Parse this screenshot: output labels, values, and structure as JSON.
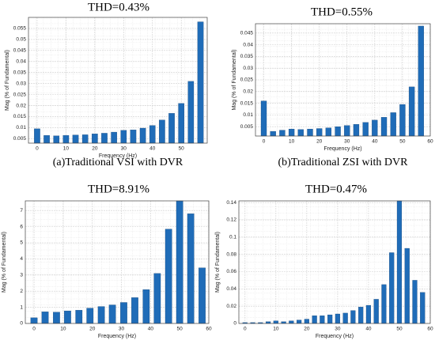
{
  "chart_data": [
    {
      "type": "bar",
      "title": "THD=0.43%",
      "caption": "(a)Traditional VSI with DVR",
      "x_label": "Frequency (Hz)",
      "y_label": "Mag (% of Fundamental)",
      "color": "#1f6cb8",
      "grid": true,
      "x": [
        0,
        3.33,
        6.67,
        10,
        13.33,
        16.67,
        20,
        23.33,
        26.67,
        30,
        33.33,
        36.67,
        40,
        43.33,
        46.67,
        50,
        53.33,
        56.67
      ],
      "values": [
        0.0095,
        0.0065,
        0.0063,
        0.0065,
        0.0067,
        0.0068,
        0.0072,
        0.0075,
        0.008,
        0.0088,
        0.009,
        0.0098,
        0.011,
        0.0135,
        0.0165,
        0.021,
        0.031,
        0.058
      ],
      "xlim": [
        -3,
        59
      ],
      "xticks": [
        0,
        10,
        20,
        30,
        40,
        50
      ],
      "ylim": [
        0.003,
        0.06
      ],
      "yticks": [
        0.005,
        0.01,
        0.015,
        0.02,
        0.025,
        0.03,
        0.035,
        0.04,
        0.045,
        0.05,
        0.055
      ]
    },
    {
      "type": "bar",
      "title": "THD=0.55%",
      "caption": "(b)Traditional ZSI with DVR",
      "x_label": "Frequency (Hz)",
      "y_label": "Mag (% of Fundamental)",
      "color": "#1f6cb8",
      "grid": true,
      "x": [
        0,
        3.33,
        6.67,
        10,
        13.33,
        16.67,
        20,
        23.33,
        26.67,
        30,
        33.33,
        36.67,
        40,
        43.33,
        46.67,
        50,
        53.33,
        56.67
      ],
      "values": [
        0.016,
        0.003,
        0.0035,
        0.004,
        0.0038,
        0.004,
        0.0042,
        0.0045,
        0.005,
        0.0055,
        0.006,
        0.0068,
        0.0078,
        0.009,
        0.011,
        0.0145,
        0.022,
        0.048
      ],
      "xlim": [
        -3,
        60
      ],
      "xticks": [
        0,
        10,
        20,
        30,
        40,
        50,
        60
      ],
      "ylim": [
        0.001,
        0.049
      ],
      "yticks": [
        0.005,
        0.01,
        0.015,
        0.02,
        0.025,
        0.03,
        0.035,
        0.04,
        0.045
      ]
    },
    {
      "type": "bar",
      "title": "THD=8.91%",
      "x_label": "Frequency (Hz)",
      "y_label": "Mag (% of Fundamental)",
      "color": "#1f6cb8",
      "grid": true,
      "x": [
        0,
        3.8,
        7.7,
        11.5,
        15.4,
        19.2,
        23.1,
        26.9,
        30.8,
        34.6,
        38.5,
        42.3,
        46.2,
        50,
        53.8,
        57.7
      ],
      "values": [
        0.35,
        0.72,
        0.7,
        0.78,
        0.82,
        0.95,
        1.05,
        1.15,
        1.3,
        1.6,
        2.1,
        3.1,
        5.85,
        7.6,
        6.8,
        3.45
      ],
      "xlim": [
        -3,
        60
      ],
      "xticks": [
        0,
        10,
        20,
        30,
        40,
        50,
        60
      ],
      "ylim": [
        0,
        7.6
      ],
      "yticks": [
        0,
        1,
        2,
        3,
        4,
        5,
        6,
        7
      ]
    },
    {
      "type": "bar",
      "title": "THD=0.47%",
      "x_label": "Frequency (Hz)",
      "y_label": "Mag (% of Fundamental)",
      "color": "#1f6cb8",
      "grid": true,
      "x": [
        0,
        2.5,
        5,
        7.5,
        10,
        12.5,
        15,
        17.5,
        20,
        22.5,
        25,
        27.5,
        30,
        32.5,
        35,
        37.5,
        40,
        42.5,
        45,
        47.5,
        50,
        52.5,
        55,
        57.5
      ],
      "values": [
        0.001,
        0.001,
        0.001,
        0.002,
        0.003,
        0.002,
        0.003,
        0.004,
        0.005,
        0.009,
        0.009,
        0.01,
        0.011,
        0.012,
        0.015,
        0.019,
        0.021,
        0.028,
        0.045,
        0.082,
        0.142,
        0.087,
        0.05,
        0.036
      ],
      "xlim": [
        -2,
        60
      ],
      "xticks": [
        0,
        10,
        20,
        30,
        40,
        50,
        60
      ],
      "ylim": [
        0,
        0.142
      ],
      "yticks": [
        0,
        0.02,
        0.04,
        0.06,
        0.08,
        0.1,
        0.12,
        0.14
      ]
    }
  ]
}
